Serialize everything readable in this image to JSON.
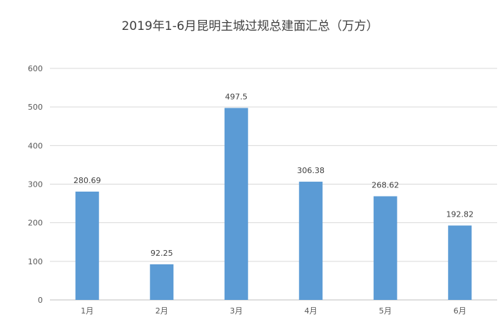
{
  "chart_data": {
    "type": "bar",
    "title": "2019年1-6月昆明主城过规总建面汇总（万方）",
    "categories": [
      "1月",
      "2月",
      "3月",
      "4月",
      "5月",
      "6月"
    ],
    "values": [
      280.69,
      92.25,
      497.5,
      306.38,
      268.62,
      192.82
    ],
    "value_labels": [
      "280.69",
      "92.25",
      "497.5",
      "306.38",
      "268.62",
      "192.82"
    ],
    "xlabel": "",
    "ylabel": "",
    "ylim": [
      0,
      600
    ],
    "yticks": [
      0,
      100,
      200,
      300,
      400,
      500,
      600
    ],
    "grid": true,
    "legend": "none",
    "bar_color": "#5B9BD5",
    "grid_color": "#D9D9D9"
  }
}
